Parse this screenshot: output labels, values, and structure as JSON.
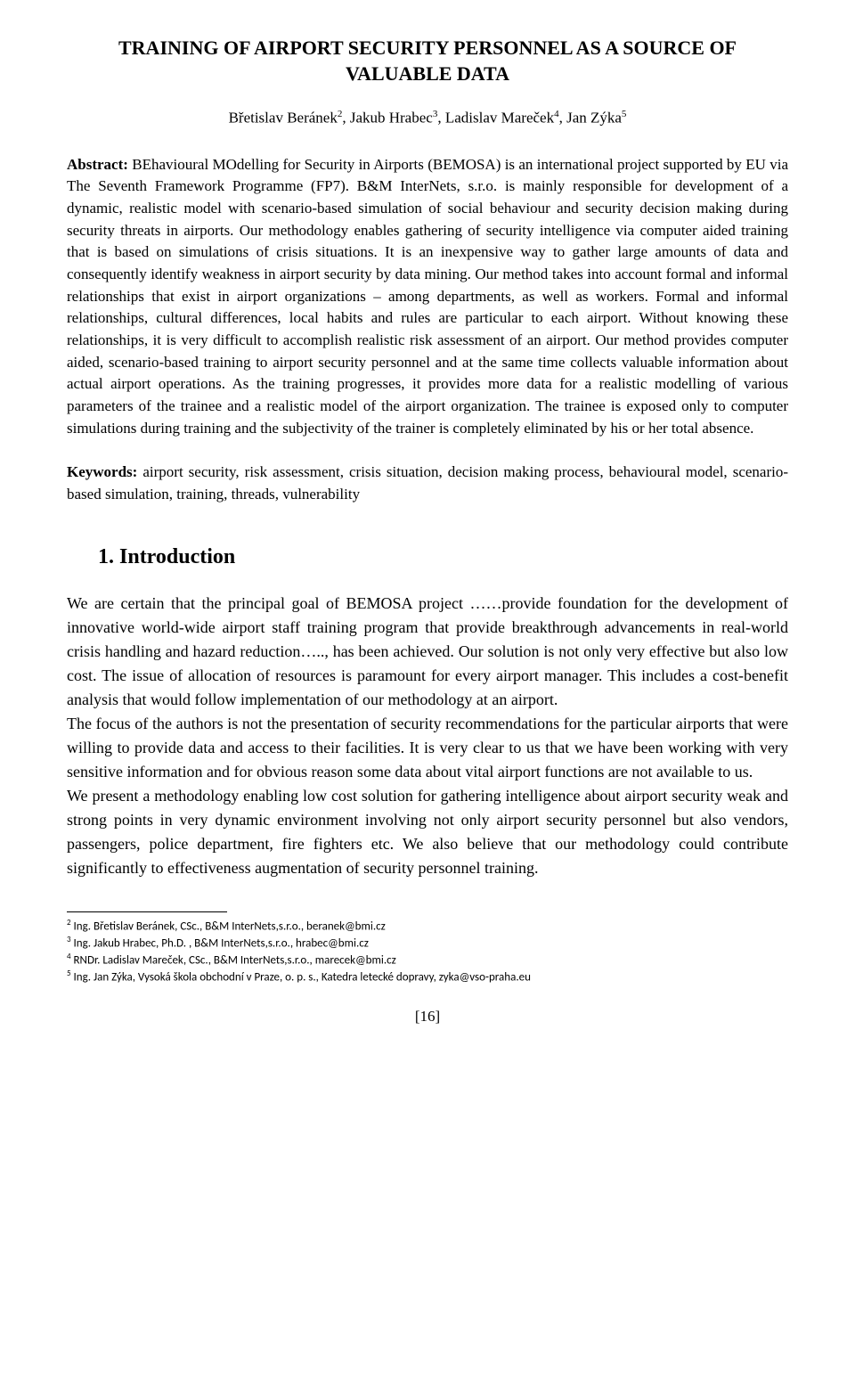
{
  "document": {
    "title": "TRAINING OF AIRPORT SECURITY PERSONNEL AS A SOURCE OF VALUABLE DATA",
    "authors_html": "Břetislav Beránek<sup>2</sup>, Jakub Hrabec<sup>3</sup>, Ladislav Mareček<sup>4</sup>, Jan Zýka<sup>5</sup>",
    "abstract_label": "Abstract:",
    "abstract_text": " BEhavioural MOdelling for Security in Airports (BEMOSA) is an international project supported by EU via The Seventh Framework Programme (FP7). B&M InterNets, s.r.o. is mainly responsible for development of a dynamic, realistic model with scenario-based simulation of social behaviour and security decision making during security threats in airports. Our methodology enables gathering of security intelligence via computer aided training that is based on simulations of crisis situations. It is an inexpensive way to gather large amounts of data and consequently identify weakness in airport security by data mining. Our method takes into account formal and informal relationships that exist in airport organizations – among departments, as well as workers. Formal and informal relationships, cultural differences, local habits and rules are particular to each airport. Without knowing these relationships, it is very difficult to accomplish realistic risk assessment of an airport. Our method provides computer aided, scenario-based training to airport security personnel and at the same time collects valuable information about actual airport operations. As the training progresses, it provides more data for a realistic modelling of various parameters of the trainee and a realistic model of the airport organization.  The trainee is exposed only to computer simulations during training and the subjectivity of the trainer is completely eliminated by his or her total absence.",
    "keywords_label": "Keywords:",
    "keywords_text": " airport security, risk assessment, crisis situation, decision making process, behavioural model, scenario-based simulation, training, threads, vulnerability",
    "section1_heading": "1.  Introduction",
    "intro_para1": "We are certain that the principal goal of BEMOSA project ……provide foundation for the development of innovative world-wide airport staff training program that provide breakthrough advancements in real-world crisis handling and hazard reduction….., has been achieved. Our solution is not only very effective but also low cost. The issue of allocation of resources is paramount for every airport manager. This includes a cost-benefit analysis that would follow implementation of our methodology at an airport.",
    "intro_para2": "The focus of the authors is not the presentation of security recommendations for the particular airports that were willing to provide data and access to their facilities. It is very clear to us that we have been working with very sensitive information and for obvious reason some data about vital airport functions are not available to us.",
    "intro_para3": "We present a methodology enabling low cost solution for gathering intelligence about airport security weak and strong points in very dynamic environment involving not only airport security personnel but also vendors, passengers, police department, fire fighters etc. We also believe that our methodology could contribute significantly to effectiveness augmentation of security personnel training.",
    "footnotes": [
      "<sup>2</sup> Ing. Břetislav Beránek, CSc., B&M InterNets,s.r.o., beranek@bmi.cz",
      "<sup>3</sup> Ing. Jakub Hrabec, Ph.D. , B&M InterNets,s.r.o., hrabec@bmi.cz",
      "<sup>4</sup> RNDr. Ladislav Mareček, CSc., B&M InterNets,s.r.o., marecek@bmi.cz",
      "<sup>5</sup> Ing. Jan Zýka, Vysoká škola obchodní v Praze, o. p. s., Katedra letecké dopravy, zyka@vso-praha.eu"
    ],
    "page_number": "[16]",
    "style": {
      "background_color": "#ffffff",
      "text_color": "#000000",
      "title_fontsize": 22,
      "authors_fontsize": 17,
      "abstract_fontsize": 17,
      "heading_fontsize": 24,
      "body_fontsize": 18,
      "footnote_fontsize": 13,
      "font_family": "Times New Roman"
    }
  }
}
